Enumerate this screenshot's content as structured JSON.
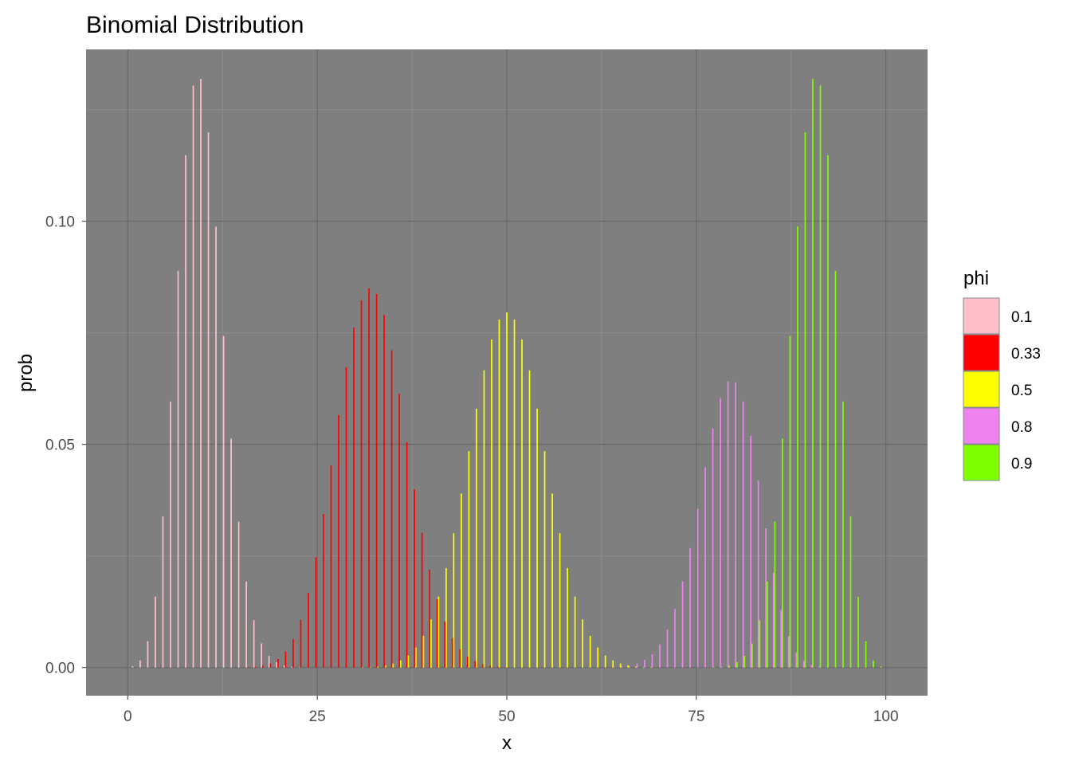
{
  "chart_data": {
    "type": "bar",
    "title": "Binomial Distribution",
    "xlabel": "x",
    "ylabel": "prob",
    "xlim": [
      -5.5,
      105.5
    ],
    "ylim": [
      -0.0063,
      0.1385
    ],
    "x_ticks": [
      0,
      25,
      50,
      75,
      100
    ],
    "x_tick_labels": [
      "0",
      "25",
      "50",
      "75",
      "100"
    ],
    "y_ticks": [
      0.0,
      0.05,
      0.1
    ],
    "y_tick_labels": [
      "0.00",
      "0.05",
      "0.10"
    ],
    "n": 100,
    "x_range": [
      0,
      100
    ],
    "grid": true,
    "legend": {
      "title": "phi",
      "position": "right",
      "entries": [
        {
          "label": "0.1",
          "color": "#FFC0CB"
        },
        {
          "label": "0.33",
          "color": "#FF0000"
        },
        {
          "label": "0.5",
          "color": "#FFFF00"
        },
        {
          "label": "0.8",
          "color": "#EE82EE"
        },
        {
          "label": "0.9",
          "color": "#7FFF00"
        }
      ]
    },
    "series": [
      {
        "name": "0.1",
        "color": "#FFC0CB",
        "values": [
          0.0,
          0.0003,
          0.0016,
          0.0059,
          0.0159,
          0.0339,
          0.0596,
          0.0889,
          0.1148,
          0.1304,
          0.1319,
          0.1199,
          0.0988,
          0.0743,
          0.0513,
          0.0327,
          0.0193,
          0.0106,
          0.0054,
          0.0026,
          0.0012,
          0.0005,
          0.0002,
          0.0001,
          0.0,
          0.0,
          0.0,
          0.0,
          0.0,
          0.0,
          0.0,
          0.0,
          0.0,
          0.0,
          0.0,
          0.0,
          0.0,
          0.0,
          0.0,
          0.0,
          0.0,
          0.0,
          0.0,
          0.0,
          0.0,
          0.0,
          0.0,
          0.0,
          0.0,
          0.0,
          0.0,
          0.0,
          0.0,
          0.0,
          0.0,
          0.0,
          0.0,
          0.0,
          0.0,
          0.0,
          0.0,
          0.0,
          0.0,
          0.0,
          0.0,
          0.0,
          0.0,
          0.0,
          0.0,
          0.0,
          0.0,
          0.0,
          0.0,
          0.0,
          0.0,
          0.0,
          0.0,
          0.0,
          0.0,
          0.0,
          0.0,
          0.0,
          0.0,
          0.0,
          0.0,
          0.0,
          0.0,
          0.0,
          0.0,
          0.0,
          0.0,
          0.0,
          0.0,
          0.0,
          0.0,
          0.0,
          0.0,
          0.0,
          0.0,
          0.0,
          0.0
        ]
      },
      {
        "name": "0.33",
        "color": "#FF0000",
        "values": [
          0.0,
          0.0,
          0.0,
          0.0,
          0.0,
          0.0,
          0.0,
          0.0,
          0.0,
          0.0,
          0.0,
          0.0,
          0.0,
          0.0,
          0.0,
          0.0,
          0.0001,
          0.0002,
          0.0004,
          0.0009,
          0.0019,
          0.0036,
          0.0064,
          0.0107,
          0.0167,
          0.0247,
          0.0344,
          0.0453,
          0.0566,
          0.0673,
          0.0762,
          0.0823,
          0.085,
          0.0837,
          0.079,
          0.0711,
          0.0613,
          0.0505,
          0.0399,
          0.0302,
          0.0219,
          0.0153,
          0.0103,
          0.0066,
          0.0041,
          0.0024,
          0.0014,
          0.0008,
          0.0004,
          0.0002,
          0.0001,
          0.0,
          0.0,
          0.0,
          0.0,
          0.0,
          0.0,
          0.0,
          0.0,
          0.0,
          0.0,
          0.0,
          0.0,
          0.0,
          0.0,
          0.0,
          0.0,
          0.0,
          0.0,
          0.0,
          0.0,
          0.0,
          0.0,
          0.0,
          0.0,
          0.0,
          0.0,
          0.0,
          0.0,
          0.0,
          0.0,
          0.0,
          0.0,
          0.0,
          0.0,
          0.0,
          0.0,
          0.0,
          0.0,
          0.0,
          0.0,
          0.0,
          0.0,
          0.0,
          0.0,
          0.0,
          0.0,
          0.0,
          0.0,
          0.0,
          0.0
        ]
      },
      {
        "name": "0.5",
        "color": "#FFFF00",
        "values": [
          0.0,
          0.0,
          0.0,
          0.0,
          0.0,
          0.0,
          0.0,
          0.0,
          0.0,
          0.0,
          0.0,
          0.0,
          0.0,
          0.0,
          0.0,
          0.0,
          0.0,
          0.0,
          0.0,
          0.0,
          0.0,
          0.0,
          0.0,
          0.0,
          0.0,
          0.0,
          0.0,
          0.0,
          0.0,
          0.0,
          0.0,
          0.0001,
          0.0001,
          0.0002,
          0.0005,
          0.0009,
          0.0016,
          0.0027,
          0.0045,
          0.0071,
          0.0108,
          0.0159,
          0.0223,
          0.0301,
          0.039,
          0.0485,
          0.058,
          0.0666,
          0.0735,
          0.078,
          0.0796,
          0.078,
          0.0735,
          0.0666,
          0.058,
          0.0485,
          0.039,
          0.0301,
          0.0223,
          0.0159,
          0.0108,
          0.0071,
          0.0045,
          0.0027,
          0.0016,
          0.0009,
          0.0005,
          0.0002,
          0.0001,
          0.0001,
          0.0,
          0.0,
          0.0,
          0.0,
          0.0,
          0.0,
          0.0,
          0.0,
          0.0,
          0.0,
          0.0,
          0.0,
          0.0,
          0.0,
          0.0,
          0.0,
          0.0,
          0.0,
          0.0,
          0.0,
          0.0,
          0.0,
          0.0,
          0.0,
          0.0,
          0.0,
          0.0,
          0.0,
          0.0,
          0.0,
          0.0
        ]
      },
      {
        "name": "0.8",
        "color": "#EE82EE",
        "values": [
          0.0,
          0.0,
          0.0,
          0.0,
          0.0,
          0.0,
          0.0,
          0.0,
          0.0,
          0.0,
          0.0,
          0.0,
          0.0,
          0.0,
          0.0,
          0.0,
          0.0,
          0.0,
          0.0,
          0.0,
          0.0,
          0.0,
          0.0,
          0.0,
          0.0,
          0.0,
          0.0,
          0.0,
          0.0,
          0.0,
          0.0,
          0.0,
          0.0,
          0.0,
          0.0,
          0.0,
          0.0,
          0.0,
          0.0,
          0.0,
          0.0,
          0.0,
          0.0,
          0.0,
          0.0,
          0.0,
          0.0,
          0.0,
          0.0,
          0.0,
          0.0,
          0.0,
          0.0,
          0.0,
          0.0,
          0.0,
          0.0,
          0.0,
          0.0,
          0.0,
          0.0,
          0.0,
          0.0,
          0.0,
          0.0001,
          0.0002,
          0.0004,
          0.0009,
          0.0017,
          0.003,
          0.0052,
          0.0085,
          0.0131,
          0.0193,
          0.0268,
          0.0356,
          0.0449,
          0.0536,
          0.0604,
          0.0641,
          0.0639,
          0.0596,
          0.0519,
          0.0419,
          0.0312,
          0.0212,
          0.0129,
          0.007,
          0.0034,
          0.0015,
          0.0006,
          0.0002,
          0.0001,
          0.0,
          0.0,
          0.0,
          0.0,
          0.0,
          0.0,
          0.0,
          0.0
        ]
      },
      {
        "name": "0.9",
        "color": "#7FFF00",
        "values": [
          0.0,
          0.0,
          0.0,
          0.0,
          0.0,
          0.0,
          0.0,
          0.0,
          0.0,
          0.0,
          0.0,
          0.0,
          0.0,
          0.0,
          0.0,
          0.0,
          0.0,
          0.0,
          0.0,
          0.0,
          0.0,
          0.0,
          0.0,
          0.0,
          0.0,
          0.0,
          0.0,
          0.0,
          0.0,
          0.0,
          0.0,
          0.0,
          0.0,
          0.0,
          0.0,
          0.0,
          0.0,
          0.0,
          0.0,
          0.0,
          0.0,
          0.0,
          0.0,
          0.0,
          0.0,
          0.0,
          0.0,
          0.0,
          0.0,
          0.0,
          0.0,
          0.0,
          0.0,
          0.0,
          0.0,
          0.0,
          0.0,
          0.0,
          0.0,
          0.0,
          0.0,
          0.0,
          0.0,
          0.0,
          0.0,
          0.0,
          0.0,
          0.0,
          0.0,
          0.0,
          0.0,
          0.0,
          0.0,
          0.0,
          0.0,
          0.0,
          0.0,
          0.0001,
          0.0002,
          0.0005,
          0.0012,
          0.0026,
          0.0054,
          0.0106,
          0.0193,
          0.0327,
          0.0513,
          0.0743,
          0.0988,
          0.1199,
          0.1319,
          0.1304,
          0.1148,
          0.0889,
          0.0596,
          0.0339,
          0.0159,
          0.0059,
          0.0016,
          0.0003,
          0.0
        ]
      }
    ]
  }
}
